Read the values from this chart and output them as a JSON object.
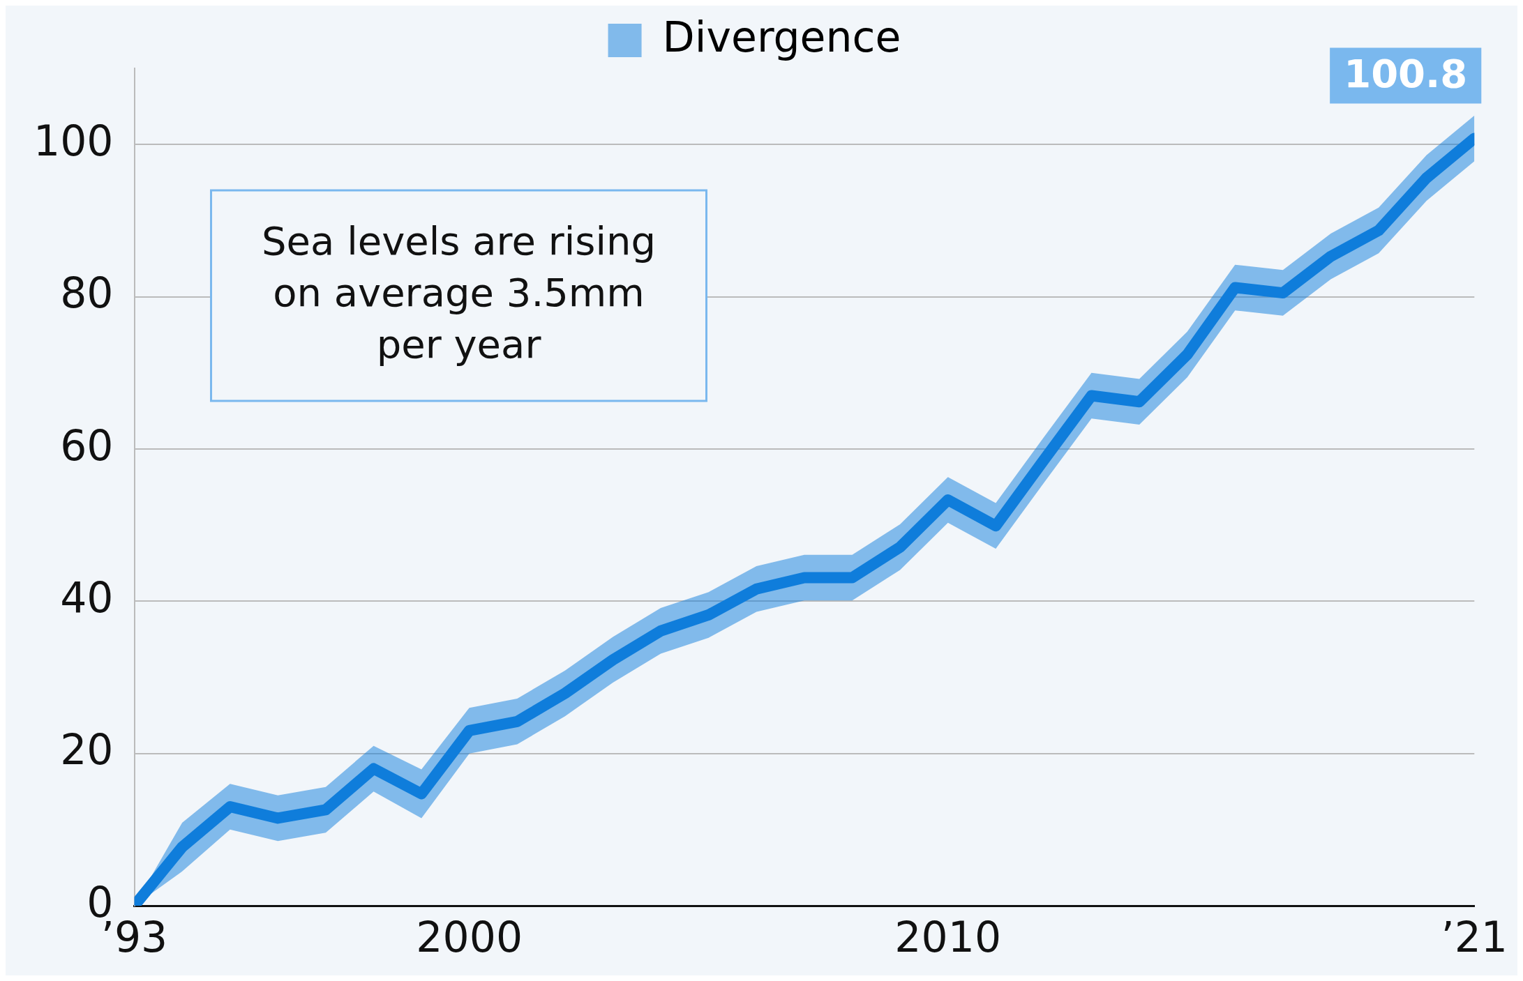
{
  "chart_data": {
    "type": "line",
    "x": [
      1993,
      1994,
      1995,
      1996,
      1997,
      1998,
      1999,
      2000,
      2001,
      2002,
      2003,
      2004,
      2005,
      2006,
      2007,
      2008,
      2009,
      2010,
      2011,
      2012,
      2013,
      2014,
      2015,
      2016,
      2017,
      2018,
      2019,
      2020,
      2021
    ],
    "series": [
      {
        "name": "Divergence",
        "color": "#0f7ddb",
        "values": [
          0,
          7.7,
          13,
          11.5,
          12.6,
          18,
          14.7,
          23,
          24.2,
          27.9,
          32.3,
          36.1,
          38.2,
          41.6,
          43.1,
          43.1,
          47.1,
          53.3,
          49.9,
          58.5,
          67,
          66.2,
          72.4,
          81.2,
          80.5,
          85.3,
          88.7,
          95.6,
          100.8
        ],
        "lower": [
          0,
          4.5,
          10,
          8.5,
          9.6,
          15,
          11.5,
          20,
          21.2,
          24.9,
          29.3,
          33.1,
          35.2,
          38.6,
          40.1,
          40.1,
          44.1,
          50.3,
          46.9,
          55.5,
          64,
          63.2,
          69.4,
          78.2,
          77.5,
          82.3,
          85.7,
          92.6,
          97.8
        ],
        "upper": [
          0,
          10.9,
          16,
          14.5,
          15.6,
          21,
          17.9,
          26,
          27.2,
          30.9,
          35.3,
          39.1,
          41.2,
          44.6,
          46.1,
          46.1,
          50.1,
          56.3,
          52.9,
          61.5,
          70,
          69.2,
          75.4,
          84.2,
          83.5,
          88.3,
          91.7,
          98.6,
          103.8
        ]
      }
    ],
    "xlim": [
      1993,
      2021
    ],
    "xticks": [
      {
        "value": 1993,
        "label": "’93"
      },
      2000,
      2010,
      {
        "value": 2021,
        "label": "’21"
      }
    ],
    "ylim": [
      0,
      110
    ],
    "yticks": [
      0,
      20,
      40,
      60,
      80,
      100
    ],
    "grid": "y",
    "legend": "top",
    "marker": "none",
    "line_style": "solid",
    "annotations": [
      "Sea levels are rising on average 3.5mm per year",
      {
        "text": "100.8",
        "x": 2021,
        "y": 100.8
      }
    ]
  }
}
